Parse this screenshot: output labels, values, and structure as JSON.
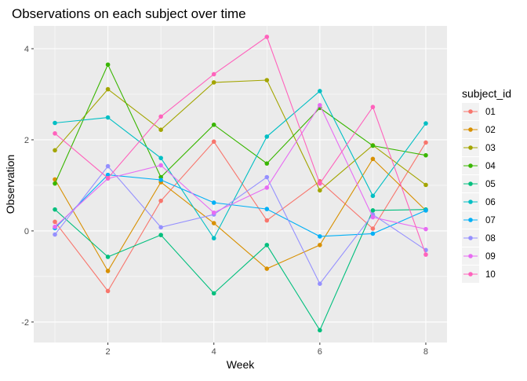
{
  "chart_data": {
    "type": "line",
    "title": "Observations on each subject over time",
    "xlabel": "Week",
    "ylabel": "Observation",
    "x": [
      1,
      2,
      3,
      4,
      5,
      6,
      7,
      8
    ],
    "xticks": [
      2,
      4,
      6,
      8
    ],
    "yticks": [
      -2,
      0,
      2,
      4
    ],
    "xlim": [
      0.6,
      8.4
    ],
    "ylim": [
      -2.45,
      4.5
    ],
    "grid": true,
    "legend": {
      "title": "subject_id",
      "position": "right"
    },
    "series": [
      {
        "name": "01",
        "color": "#F8766D",
        "values": [
          0.2,
          -1.32,
          0.66,
          1.96,
          0.23,
          1.09,
          0.05,
          1.94
        ]
      },
      {
        "name": "02",
        "color": "#D89000",
        "values": [
          1.13,
          -0.88,
          1.07,
          0.17,
          -0.83,
          -0.31,
          1.58,
          0.45
        ]
      },
      {
        "name": "03",
        "color": "#A3A500",
        "values": [
          1.77,
          3.11,
          2.22,
          3.26,
          3.31,
          0.89,
          1.88,
          1.01
        ]
      },
      {
        "name": "04",
        "color": "#39B600",
        "values": [
          1.04,
          3.65,
          1.18,
          2.33,
          1.48,
          2.7,
          1.87,
          1.66
        ]
      },
      {
        "name": "05",
        "color": "#00BF7D",
        "values": [
          0.47,
          -0.57,
          -0.09,
          -1.37,
          -0.31,
          -2.18,
          0.45,
          0.47
        ]
      },
      {
        "name": "06",
        "color": "#00BFC4",
        "values": [
          2.37,
          2.49,
          1.6,
          -0.16,
          2.07,
          3.07,
          0.77,
          2.36
        ]
      },
      {
        "name": "07",
        "color": "#00B0F6",
        "values": [
          0.06,
          1.23,
          1.12,
          0.62,
          0.48,
          -0.12,
          -0.06,
          0.45
        ]
      },
      {
        "name": "08",
        "color": "#9590FF",
        "values": [
          -0.08,
          1.42,
          0.08,
          0.36,
          1.18,
          -1.16,
          0.36,
          -0.42
        ]
      },
      {
        "name": "09",
        "color": "#E76BF3",
        "values": [
          0.09,
          1.15,
          1.44,
          0.4,
          0.95,
          2.76,
          0.3,
          0.04
        ]
      },
      {
        "name": "10",
        "color": "#FF62BC",
        "values": [
          2.14,
          1.16,
          2.51,
          3.44,
          4.26,
          1.04,
          2.72,
          -0.52
        ]
      }
    ]
  }
}
